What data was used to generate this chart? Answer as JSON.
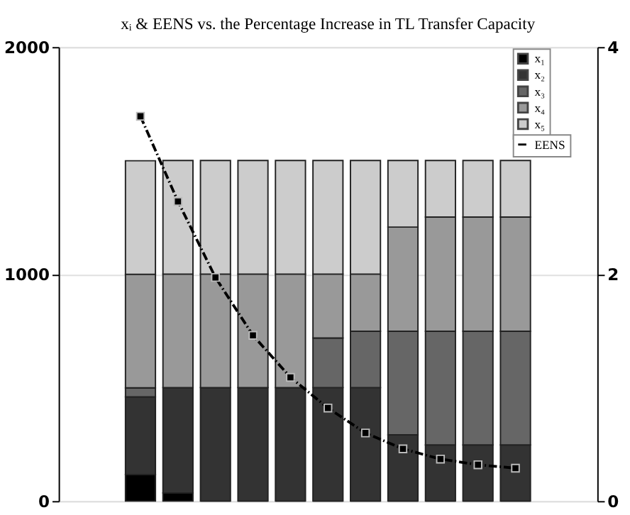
{
  "chart_data": {
    "type": "bar",
    "title": "xᵢ & EENS vs. the Percentage Increase in TL Transfer Capacity",
    "categories": [
      null,
      null,
      null,
      null,
      null,
      null,
      null,
      null,
      null,
      null,
      null
    ],
    "stacked": true,
    "series": [
      {
        "name": "x₁",
        "color": "#000000",
        "values": [
          117,
          36,
          0,
          0,
          0,
          0,
          0,
          0,
          0,
          0,
          0
        ]
      },
      {
        "name": "x₂",
        "color": "#333333",
        "values": [
          342,
          464,
          500,
          500,
          500,
          500,
          500,
          292,
          247,
          247,
          247
        ]
      },
      {
        "name": "x₃",
        "color": "#666666",
        "values": [
          40,
          0,
          0,
          0,
          0,
          218,
          248,
          456,
          501,
          501,
          501
        ]
      },
      {
        "name": "x₄",
        "color": "#999999",
        "values": [
          500,
          500,
          500,
          500,
          500,
          282,
          252,
          459,
          503,
          503,
          503
        ]
      },
      {
        "name": "x₅",
        "color": "#cccccc",
        "values": [
          500,
          500,
          500,
          500,
          500,
          500,
          500,
          293,
          249,
          249,
          249
        ]
      },
      {
        "name": "EENS",
        "type": "line",
        "axis": "y2",
        "color": "#000000",
        "marker": "square",
        "line_style": "dashed",
        "values": [
          3.39,
          2.64,
          1.97,
          1.46,
          1.09,
          0.82,
          0.6,
          0.46,
          0.37,
          0.32,
          0.29
        ]
      }
    ],
    "ylim": [
      0,
      2000
    ],
    "yticks": [
      0,
      {
        "value": 1000,
        "label": "1000"
      },
      {
        "value": 2000,
        "label": "2000"
      }
    ],
    "y2lim": [
      0,
      4
    ],
    "y2ticks": [
      0,
      2,
      4
    ],
    "tick_labels": "y",
    "grid": true,
    "legend": "top right"
  }
}
